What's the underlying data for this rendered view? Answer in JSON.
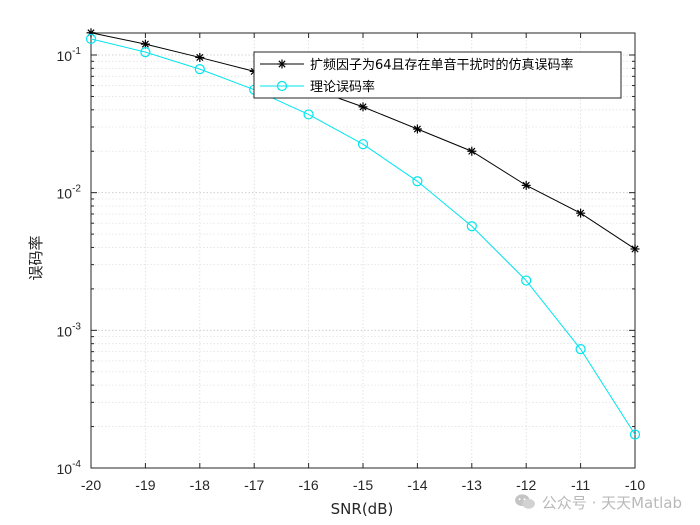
{
  "chart_data": {
    "type": "line",
    "xlabel": "SNR(dB)",
    "ylabel": "误码率",
    "xlim": [
      -20,
      -10
    ],
    "ylim": [
      0.0001,
      0.15
    ],
    "yscale": "log",
    "grid": true,
    "legend_position": "top-right",
    "x": [
      -20,
      -19,
      -18,
      -17,
      -16,
      -15,
      -14,
      -13,
      -12,
      -11,
      -10
    ],
    "xticks": [
      "-20",
      "-19",
      "-18",
      "-17",
      "-16",
      "-15",
      "-14",
      "-13",
      "-12",
      "-11",
      "-10"
    ],
    "yticks": [
      {
        "base": "10",
        "exp": "-4",
        "value": 0.0001
      },
      {
        "base": "10",
        "exp": "-3",
        "value": 0.001
      },
      {
        "base": "10",
        "exp": "-2",
        "value": 0.01
      },
      {
        "base": "10",
        "exp": "-1",
        "value": 0.1
      }
    ],
    "series": [
      {
        "name": "扩频因子为64且存在单音干扰时的仿真误码率",
        "color": "#000000",
        "marker": "asterisk",
        "values": [
          0.145,
          0.12,
          0.096,
          0.076,
          0.058,
          0.042,
          0.029,
          0.02,
          0.0113,
          0.0071,
          0.0039
        ]
      },
      {
        "name": "理论误码率",
        "color": "#00e5ee",
        "marker": "circle",
        "values": [
          0.131,
          0.105,
          0.079,
          0.056,
          0.037,
          0.0225,
          0.0121,
          0.0057,
          0.0023,
          0.00073,
          0.000175
        ]
      }
    ]
  },
  "watermark": {
    "text": "公众号 · 天天Matlab",
    "icon": "wechat-icon"
  }
}
